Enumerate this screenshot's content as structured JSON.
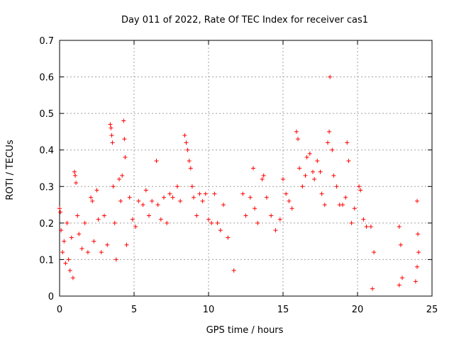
{
  "chart_data": {
    "type": "scatter",
    "title": "Day 011 of 2022, Rate Of TEC Index for receiver cas1",
    "xlabel": "GPS time / hours",
    "ylabel": "ROTI / TECUs",
    "xlim": [
      0,
      25
    ],
    "ylim": [
      0,
      0.7
    ],
    "xticks": [
      "0",
      "5",
      "10",
      "15",
      "20",
      "25"
    ],
    "yticks": [
      "0",
      "0.1",
      "0.2",
      "0.3",
      "0.4",
      "0.5",
      "0.6",
      "0.7"
    ],
    "grid": true,
    "marker": "plus",
    "color": "#ff0000",
    "series": [
      {
        "points": [
          [
            0.0,
            0.24
          ],
          [
            0.05,
            0.23
          ],
          [
            0.1,
            0.18
          ],
          [
            0.2,
            0.12
          ],
          [
            0.3,
            0.15
          ],
          [
            0.4,
            0.09
          ],
          [
            0.5,
            0.2
          ],
          [
            0.6,
            0.1
          ],
          [
            0.7,
            0.07
          ],
          [
            0.8,
            0.16
          ],
          [
            0.9,
            0.05
          ],
          [
            1.0,
            0.34
          ],
          [
            1.05,
            0.33
          ],
          [
            1.1,
            0.31
          ],
          [
            1.2,
            0.22
          ],
          [
            1.3,
            0.17
          ],
          [
            1.5,
            0.13
          ],
          [
            1.7,
            0.2
          ],
          [
            1.9,
            0.12
          ],
          [
            2.1,
            0.27
          ],
          [
            2.2,
            0.26
          ],
          [
            2.3,
            0.15
          ],
          [
            2.5,
            0.29
          ],
          [
            2.6,
            0.21
          ],
          [
            2.8,
            0.12
          ],
          [
            3.0,
            0.22
          ],
          [
            3.2,
            0.14
          ],
          [
            3.4,
            0.47
          ],
          [
            3.45,
            0.46
          ],
          [
            3.5,
            0.44
          ],
          [
            3.55,
            0.42
          ],
          [
            3.6,
            0.3
          ],
          [
            3.7,
            0.2
          ],
          [
            3.8,
            0.1
          ],
          [
            4.0,
            0.32
          ],
          [
            4.1,
            0.26
          ],
          [
            4.2,
            0.33
          ],
          [
            4.3,
            0.48
          ],
          [
            4.35,
            0.43
          ],
          [
            4.4,
            0.38
          ],
          [
            4.5,
            0.14
          ],
          [
            4.7,
            0.27
          ],
          [
            4.9,
            0.21
          ],
          [
            5.1,
            0.19
          ],
          [
            5.3,
            0.26
          ],
          [
            5.6,
            0.25
          ],
          [
            5.8,
            0.29
          ],
          [
            6.0,
            0.22
          ],
          [
            6.2,
            0.26
          ],
          [
            6.5,
            0.37
          ],
          [
            6.6,
            0.25
          ],
          [
            6.8,
            0.21
          ],
          [
            7.0,
            0.27
          ],
          [
            7.2,
            0.2
          ],
          [
            7.4,
            0.28
          ],
          [
            7.6,
            0.27
          ],
          [
            7.9,
            0.3
          ],
          [
            8.1,
            0.26
          ],
          [
            8.4,
            0.44
          ],
          [
            8.5,
            0.42
          ],
          [
            8.6,
            0.4
          ],
          [
            8.7,
            0.37
          ],
          [
            8.8,
            0.35
          ],
          [
            8.9,
            0.3
          ],
          [
            9.0,
            0.27
          ],
          [
            9.2,
            0.22
          ],
          [
            9.4,
            0.28
          ],
          [
            9.6,
            0.26
          ],
          [
            9.8,
            0.28
          ],
          [
            10.0,
            0.21
          ],
          [
            10.2,
            0.2
          ],
          [
            10.4,
            0.28
          ],
          [
            10.6,
            0.2
          ],
          [
            10.8,
            0.18
          ],
          [
            11.0,
            0.25
          ],
          [
            11.3,
            0.16
          ],
          [
            11.7,
            0.07
          ],
          [
            12.3,
            0.28
          ],
          [
            12.5,
            0.22
          ],
          [
            12.8,
            0.27
          ],
          [
            13.0,
            0.35
          ],
          [
            13.1,
            0.24
          ],
          [
            13.3,
            0.2
          ],
          [
            13.6,
            0.32
          ],
          [
            13.7,
            0.33
          ],
          [
            13.9,
            0.27
          ],
          [
            14.2,
            0.22
          ],
          [
            14.5,
            0.18
          ],
          [
            14.8,
            0.21
          ],
          [
            15.0,
            0.32
          ],
          [
            15.2,
            0.28
          ],
          [
            15.4,
            0.26
          ],
          [
            15.6,
            0.24
          ],
          [
            15.9,
            0.45
          ],
          [
            16.0,
            0.43
          ],
          [
            16.1,
            0.35
          ],
          [
            16.3,
            0.3
          ],
          [
            16.5,
            0.33
          ],
          [
            16.6,
            0.38
          ],
          [
            16.8,
            0.39
          ],
          [
            17.0,
            0.34
          ],
          [
            17.1,
            0.32
          ],
          [
            17.3,
            0.37
          ],
          [
            17.5,
            0.34
          ],
          [
            17.6,
            0.28
          ],
          [
            17.8,
            0.25
          ],
          [
            18.0,
            0.42
          ],
          [
            18.1,
            0.45
          ],
          [
            18.15,
            0.6
          ],
          [
            18.3,
            0.4
          ],
          [
            18.4,
            0.33
          ],
          [
            18.6,
            0.3
          ],
          [
            18.8,
            0.25
          ],
          [
            19.0,
            0.25
          ],
          [
            19.2,
            0.27
          ],
          [
            19.3,
            0.42
          ],
          [
            19.4,
            0.37
          ],
          [
            19.6,
            0.2
          ],
          [
            19.8,
            0.24
          ],
          [
            20.1,
            0.3
          ],
          [
            20.2,
            0.29
          ],
          [
            20.4,
            0.21
          ],
          [
            20.6,
            0.19
          ],
          [
            20.9,
            0.19
          ],
          [
            21.1,
            0.12
          ],
          [
            22.8,
            0.19
          ],
          [
            22.9,
            0.14
          ],
          [
            23.0,
            0.05
          ],
          [
            24.0,
            0.26
          ],
          [
            24.05,
            0.17
          ],
          [
            24.1,
            0.12
          ],
          [
            24.0,
            0.08
          ],
          [
            23.9,
            0.04
          ],
          [
            22.8,
            0.03
          ],
          [
            21.0,
            0.02
          ]
        ]
      }
    ]
  }
}
